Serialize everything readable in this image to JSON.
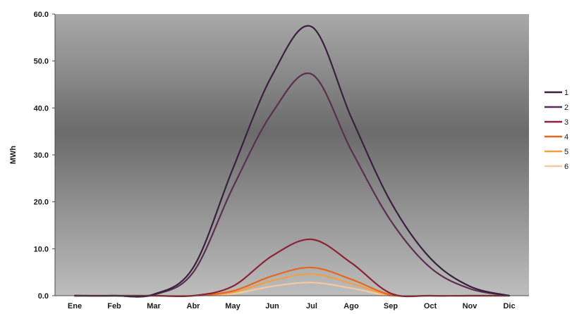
{
  "chart_data": {
    "type": "line",
    "title": "",
    "xlabel": "",
    "ylabel": "MWh",
    "ylim": [
      0,
      60
    ],
    "yticks": [
      "0.0",
      "10.0",
      "20.0",
      "30.0",
      "40.0",
      "50.0",
      "60.0"
    ],
    "categories": [
      "Ene",
      "Feb",
      "Mar",
      "Abr",
      "May",
      "Jun",
      "Jul",
      "Ago",
      "Sep",
      "Oct",
      "Nov",
      "Dic"
    ],
    "grid": false,
    "legend_position": "right",
    "series": [
      {
        "name": "1",
        "color": "#3a1f3f",
        "values": [
          0.0,
          0.0,
          0.3,
          6.0,
          27.0,
          47.0,
          57.3,
          38.0,
          20.0,
          8.0,
          2.0,
          0.0
        ]
      },
      {
        "name": "2",
        "color": "#5a2f4f",
        "values": [
          0.0,
          0.0,
          0.2,
          5.0,
          23.0,
          39.0,
          47.2,
          31.0,
          16.0,
          6.0,
          1.5,
          0.0
        ]
      },
      {
        "name": "3",
        "color": "#8b2235",
        "values": [
          0.0,
          0.0,
          0.0,
          0.0,
          2.0,
          8.5,
          12.0,
          7.0,
          0.5,
          0.0,
          0.0,
          0.0
        ]
      },
      {
        "name": "4",
        "color": "#e8661c",
        "values": [
          0.0,
          0.0,
          0.0,
          0.0,
          1.0,
          4.2,
          6.0,
          3.5,
          0.2,
          0.0,
          0.0,
          0.0
        ]
      },
      {
        "name": "5",
        "color": "#f0a040",
        "values": [
          0.0,
          0.0,
          0.0,
          0.0,
          0.7,
          3.2,
          4.6,
          2.6,
          0.1,
          0.0,
          0.0,
          0.0
        ]
      },
      {
        "name": "6",
        "color": "#f3c9a0",
        "values": [
          0.0,
          0.0,
          0.0,
          0.0,
          0.4,
          2.0,
          2.8,
          1.6,
          0.0,
          0.0,
          0.0,
          0.0
        ]
      }
    ]
  }
}
